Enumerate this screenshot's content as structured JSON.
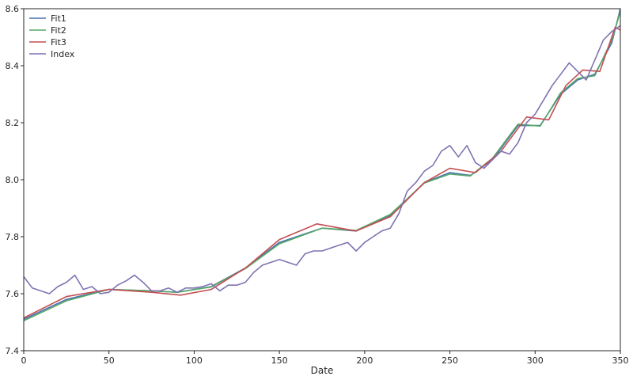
{
  "chart_data": {
    "type": "line",
    "xlabel": "Date",
    "ylabel": "",
    "xlim": [
      0,
      350
    ],
    "ylim": [
      7.4,
      8.6
    ],
    "xticks": [
      0,
      50,
      100,
      150,
      200,
      250,
      300,
      350
    ],
    "yticks": [
      7.4,
      7.6,
      7.8,
      8.0,
      8.2,
      8.4,
      8.6
    ],
    "grid": false,
    "legend": "top-left",
    "series": [
      {
        "name": "Fit1",
        "color": "#4c72b0",
        "x": [
          0,
          25,
          50,
          75,
          90,
          110,
          130,
          150,
          175,
          195,
          215,
          235,
          250,
          262,
          275,
          290,
          303,
          315,
          325,
          335,
          345,
          350
        ],
        "y": [
          7.51,
          7.58,
          7.615,
          7.61,
          7.605,
          7.625,
          7.69,
          7.78,
          7.83,
          7.82,
          7.875,
          7.99,
          8.025,
          8.015,
          8.07,
          8.19,
          8.19,
          8.3,
          8.35,
          8.37,
          8.48,
          8.6
        ]
      },
      {
        "name": "Fit2",
        "color": "#55a868",
        "x": [
          0,
          25,
          50,
          75,
          90,
          110,
          130,
          150,
          175,
          195,
          215,
          235,
          250,
          262,
          275,
          290,
          303,
          315,
          325,
          335,
          345,
          350
        ],
        "y": [
          7.505,
          7.575,
          7.615,
          7.61,
          7.605,
          7.624,
          7.688,
          7.775,
          7.83,
          7.822,
          7.878,
          7.988,
          8.02,
          8.013,
          8.075,
          8.195,
          8.188,
          8.305,
          8.355,
          8.365,
          8.49,
          8.59
        ]
      },
      {
        "name": "Fit3",
        "color": "#c44e52",
        "x": [
          0,
          25,
          50,
          75,
          92,
          110,
          130,
          150,
          172,
          195,
          215,
          235,
          250,
          265,
          280,
          295,
          308,
          318,
          328,
          338,
          347,
          350
        ],
        "y": [
          7.515,
          7.59,
          7.615,
          7.605,
          7.595,
          7.615,
          7.69,
          7.79,
          7.845,
          7.82,
          7.87,
          7.99,
          8.04,
          8.025,
          8.1,
          8.22,
          8.21,
          8.33,
          8.385,
          8.38,
          8.535,
          8.525
        ]
      },
      {
        "name": "Index",
        "color": "#8172b2",
        "x": [
          0,
          5,
          10,
          15,
          20,
          25,
          30,
          35,
          40,
          45,
          50,
          55,
          60,
          65,
          70,
          75,
          80,
          85,
          90,
          95,
          100,
          105,
          110,
          115,
          120,
          125,
          130,
          135,
          140,
          145,
          150,
          155,
          160,
          165,
          170,
          175,
          180,
          185,
          190,
          195,
          200,
          205,
          210,
          215,
          220,
          225,
          230,
          235,
          240,
          245,
          250,
          255,
          260,
          265,
          270,
          275,
          280,
          285,
          290,
          295,
          300,
          305,
          310,
          315,
          320,
          325,
          330,
          335,
          340,
          345,
          350
        ],
        "y": [
          7.66,
          7.62,
          7.61,
          7.6,
          7.625,
          7.64,
          7.665,
          7.615,
          7.625,
          7.6,
          7.605,
          7.63,
          7.645,
          7.665,
          7.64,
          7.61,
          7.61,
          7.62,
          7.605,
          7.62,
          7.62,
          7.625,
          7.635,
          7.61,
          7.63,
          7.63,
          7.64,
          7.675,
          7.7,
          7.71,
          7.72,
          7.71,
          7.7,
          7.74,
          7.75,
          7.75,
          7.76,
          7.77,
          7.78,
          7.75,
          7.78,
          7.8,
          7.82,
          7.83,
          7.88,
          7.96,
          7.99,
          8.03,
          8.05,
          8.1,
          8.12,
          8.08,
          8.12,
          8.06,
          8.04,
          8.07,
          8.1,
          8.09,
          8.13,
          8.2,
          8.23,
          8.28,
          8.33,
          8.37,
          8.41,
          8.38,
          8.35,
          8.42,
          8.49,
          8.52,
          8.54
        ]
      }
    ]
  }
}
